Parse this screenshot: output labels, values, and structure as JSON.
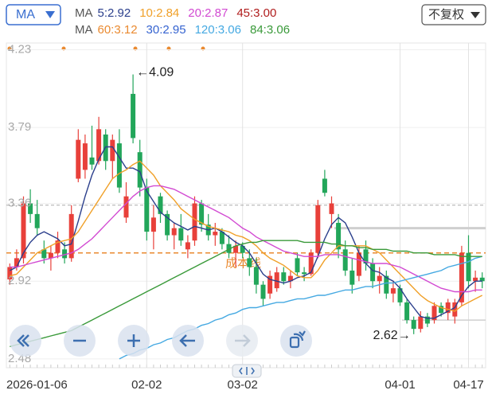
{
  "chart_data": {
    "type": "candlestick",
    "indicator": "MA",
    "adjust_button": "不复权",
    "legend_rows": [
      {
        "prefix": "MA",
        "series": [
          {
            "name": "5:2.92",
            "color": "#2b3f8c",
            "values": [
              2.98,
              3.0,
              3.08,
              3.14,
              3.18,
              3.2,
              3.18,
              3.16,
              3.12,
              3.13,
              3.26,
              3.4,
              3.52,
              3.61,
              3.68,
              3.68,
              3.62,
              3.56,
              3.56,
              3.54,
              3.43,
              3.37,
              3.31,
              3.28,
              3.25,
              3.23,
              3.21,
              3.23,
              3.22,
              3.21,
              3.22,
              3.2,
              3.17,
              3.14,
              3.12,
              3.08,
              3.02,
              2.96,
              2.93,
              2.92,
              2.91,
              2.92,
              2.94,
              2.95,
              2.97,
              3.06,
              3.16,
              3.24,
              3.28,
              3.25,
              3.17,
              3.08,
              3.02,
              2.98,
              2.97,
              2.94,
              2.92,
              2.88,
              2.82,
              2.77,
              2.72,
              2.71,
              2.71,
              2.73,
              2.75,
              2.77,
              2.84,
              2.89,
              2.92,
              2.92
            ]
          },
          {
            "name": "10:2.84",
            "color": "#f0a028",
            "values": [
              2.95,
              2.96,
              3.0,
              3.04,
              3.08,
              3.1,
              3.12,
              3.14,
              3.15,
              3.16,
              3.2,
              3.26,
              3.32,
              3.38,
              3.44,
              3.5,
              3.53,
              3.55,
              3.58,
              3.6,
              3.56,
              3.52,
              3.46,
              3.42,
              3.38,
              3.33,
              3.3,
              3.27,
              3.25,
              3.23,
              3.22,
              3.21,
              3.2,
              3.18,
              3.17,
              3.15,
              3.12,
              3.08,
              3.05,
              3.03,
              3.01,
              2.98,
              2.95,
              2.94,
              2.94,
              2.98,
              3.04,
              3.08,
              3.12,
              3.12,
              3.12,
              3.12,
              3.12,
              3.1,
              3.08,
              3.04,
              3.0,
              2.96,
              2.92,
              2.88,
              2.84,
              2.81,
              2.79,
              2.77,
              2.76,
              2.75,
              2.78,
              2.8,
              2.82,
              2.84
            ]
          },
          {
            "name": "20:2.87",
            "color": "#d24ad2",
            "values": [
              3.0,
              3.0,
              3.01,
              3.02,
              3.03,
              3.04,
              3.05,
              3.06,
              3.07,
              3.08,
              3.1,
              3.13,
              3.16,
              3.2,
              3.24,
              3.28,
              3.32,
              3.36,
              3.4,
              3.43,
              3.45,
              3.46,
              3.46,
              3.45,
              3.44,
              3.42,
              3.4,
              3.38,
              3.36,
              3.34,
              3.32,
              3.3,
              3.28,
              3.25,
              3.22,
              3.2,
              3.17,
              3.15,
              3.13,
              3.11,
              3.09,
              3.08,
              3.07,
              3.06,
              3.06,
              3.06,
              3.07,
              3.07,
              3.07,
              3.06,
              3.05,
              3.04,
              3.03,
              3.02,
              3.02,
              3.02,
              3.01,
              3.0,
              2.98,
              2.96,
              2.94,
              2.92,
              2.9,
              2.88,
              2.87,
              2.86,
              2.86,
              2.86,
              2.87,
              2.87
            ]
          },
          {
            "name": "45:3.00",
            "color": "#b01c1c"
          }
        ]
      },
      {
        "prefix": "MA",
        "series": [
          {
            "name": "60:3.12",
            "color": "#ea8a30"
          },
          {
            "name": "30:2.95",
            "color": "#3563d0"
          },
          {
            "name": "120:3.06",
            "color": "#45a9e2",
            "values": [
              null,
              null,
              null,
              null,
              null,
              null,
              null,
              null,
              null,
              null,
              null,
              null,
              null,
              null,
              null,
              null,
              2.48,
              2.5,
              2.51,
              2.53,
              2.54,
              2.56,
              2.57,
              2.59,
              2.6,
              2.62,
              2.64,
              2.65,
              2.67,
              2.68,
              2.7,
              2.71,
              2.73,
              2.74,
              2.76,
              2.77,
              2.77,
              2.78,
              2.79,
              2.8,
              2.8,
              2.81,
              2.82,
              2.82,
              2.83,
              2.84,
              2.84,
              2.85,
              2.86,
              2.87,
              2.87,
              2.88,
              2.89,
              2.89,
              2.9,
              2.91,
              2.91,
              2.92,
              2.93,
              2.94,
              2.95,
              2.96,
              2.97,
              2.98,
              3.0,
              3.01,
              3.02,
              3.03,
              3.05,
              3.06
            ]
          },
          {
            "name": "84:3.06",
            "color": "#3a9a3a",
            "values": [
              2.55,
              2.56,
              2.57,
              2.58,
              2.59,
              2.6,
              2.61,
              2.62,
              2.63,
              2.64,
              2.66,
              2.68,
              2.7,
              2.72,
              2.74,
              2.76,
              2.78,
              2.8,
              2.82,
              2.84,
              2.86,
              2.88,
              2.9,
              2.92,
              2.94,
              2.96,
              2.98,
              3.0,
              3.02,
              3.04,
              3.06,
              3.08,
              3.1,
              3.12,
              3.13,
              3.14,
              3.14,
              3.15,
              3.15,
              3.15,
              3.15,
              3.15,
              3.15,
              3.14,
              3.14,
              3.14,
              3.14,
              3.13,
              3.13,
              3.12,
              3.12,
              3.11,
              3.11,
              3.1,
              3.1,
              3.1,
              3.09,
              3.09,
              3.09,
              3.08,
              3.08,
              3.08,
              3.07,
              3.07,
              3.07,
              3.07,
              3.06,
              3.06,
              3.06,
              3.06
            ]
          }
        ]
      }
    ],
    "categories": [
      "2026-01-06",
      null,
      null,
      null,
      null,
      null,
      null,
      null,
      null,
      null,
      null,
      null,
      null,
      null,
      null,
      null,
      null,
      null,
      null,
      null,
      "02-02",
      null,
      null,
      null,
      null,
      null,
      null,
      null,
      null,
      null,
      null,
      null,
      null,
      null,
      "03-02",
      null,
      null,
      null,
      null,
      null,
      null,
      null,
      null,
      null,
      null,
      null,
      null,
      null,
      null,
      null,
      null,
      null,
      null,
      null,
      null,
      null,
      null,
      "04-01",
      null,
      null,
      null,
      null,
      null,
      null,
      null,
      null,
      null,
      "04-17",
      null,
      null
    ],
    "candles": [
      [
        2.93,
        3.02,
        2.9,
        3.0
      ],
      [
        3.0,
        3.1,
        2.98,
        3.05
      ],
      [
        3.05,
        3.4,
        3.02,
        3.36
      ],
      [
        3.36,
        3.44,
        3.25,
        3.3
      ],
      [
        3.3,
        3.38,
        3.18,
        3.22
      ],
      [
        3.1,
        3.15,
        3.02,
        3.05
      ],
      [
        3.05,
        3.12,
        2.98,
        3.08
      ],
      [
        3.08,
        3.2,
        3.05,
        3.15
      ],
      [
        3.1,
        3.14,
        3.02,
        3.05
      ],
      [
        3.05,
        3.35,
        3.03,
        3.3
      ],
      [
        3.5,
        3.78,
        3.48,
        3.72
      ],
      [
        3.55,
        3.75,
        3.5,
        3.7
      ],
      [
        3.62,
        3.8,
        3.55,
        3.58
      ],
      [
        3.6,
        3.85,
        3.58,
        3.78
      ],
      [
        3.75,
        3.78,
        3.55,
        3.6
      ],
      [
        3.6,
        3.75,
        3.5,
        3.72
      ],
      [
        3.7,
        3.78,
        3.42,
        3.45
      ],
      [
        3.28,
        3.48,
        3.25,
        3.4
      ],
      [
        3.98,
        4.09,
        3.7,
        3.73
      ],
      [
        3.65,
        3.72,
        3.4,
        3.45
      ],
      [
        3.45,
        3.5,
        3.15,
        3.2
      ],
      [
        3.2,
        3.35,
        3.1,
        3.28
      ],
      [
        3.4,
        3.42,
        3.25,
        3.3
      ],
      [
        3.3,
        3.32,
        3.15,
        3.18
      ],
      [
        3.18,
        3.25,
        3.1,
        3.22
      ],
      [
        3.22,
        3.3,
        3.12,
        3.15
      ],
      [
        3.1,
        3.18,
        3.05,
        3.14
      ],
      [
        3.15,
        3.4,
        3.12,
        3.36
      ],
      [
        3.36,
        3.38,
        3.2,
        3.24
      ],
      [
        3.24,
        3.3,
        3.15,
        3.18
      ],
      [
        3.18,
        3.25,
        3.12,
        3.2
      ],
      [
        3.2,
        3.22,
        3.1,
        3.13
      ],
      [
        3.13,
        3.18,
        3.05,
        3.08
      ],
      [
        3.08,
        3.15,
        3.0,
        3.12
      ],
      [
        3.12,
        3.14,
        3.05,
        3.08
      ],
      [
        3.05,
        3.1,
        2.95,
        3.0
      ],
      [
        3.0,
        3.05,
        2.85,
        2.9
      ],
      [
        2.9,
        2.92,
        2.78,
        2.82
      ],
      [
        2.85,
        2.98,
        2.82,
        2.95
      ],
      [
        2.88,
        3.0,
        2.86,
        2.97
      ],
      [
        2.97,
        3.0,
        2.9,
        2.92
      ],
      [
        2.92,
        2.98,
        2.88,
        2.95
      ],
      [
        3.05,
        3.08,
        2.95,
        2.97
      ],
      [
        2.97,
        3.0,
        2.92,
        2.96
      ],
      [
        2.96,
        3.1,
        2.95,
        3.08
      ],
      [
        3.08,
        3.38,
        3.05,
        3.35
      ],
      [
        3.5,
        3.55,
        3.4,
        3.42
      ],
      [
        3.3,
        3.4,
        3.22,
        3.36
      ],
      [
        3.25,
        3.3,
        3.05,
        3.1
      ],
      [
        3.1,
        3.15,
        2.95,
        2.98
      ],
      [
        2.98,
        3.05,
        2.85,
        2.9
      ],
      [
        2.95,
        3.12,
        2.92,
        3.08
      ],
      [
        3.1,
        3.15,
        2.98,
        3.02
      ],
      [
        3.02,
        3.05,
        2.88,
        2.92
      ],
      [
        2.92,
        3.0,
        2.85,
        2.95
      ],
      [
        2.95,
        2.98,
        2.82,
        2.85
      ],
      [
        2.85,
        2.92,
        2.8,
        2.88
      ],
      [
        2.88,
        2.9,
        2.78,
        2.8
      ],
      [
        2.8,
        2.82,
        2.68,
        2.7
      ],
      [
        2.7,
        2.72,
        2.62,
        2.65
      ],
      [
        2.65,
        2.75,
        2.63,
        2.72
      ],
      [
        2.72,
        2.74,
        2.66,
        2.68
      ],
      [
        2.7,
        2.8,
        2.68,
        2.78
      ],
      [
        2.78,
        2.8,
        2.72,
        2.74
      ],
      [
        2.74,
        2.82,
        2.7,
        2.8
      ],
      [
        2.72,
        2.82,
        2.68,
        2.8
      ],
      [
        2.8,
        3.12,
        2.78,
        3.08
      ],
      [
        3.08,
        3.18,
        2.88,
        2.92
      ],
      [
        2.92,
        2.98,
        2.86,
        2.94
      ],
      [
        2.94,
        2.97,
        2.88,
        2.92
      ]
    ],
    "up_color": "#e8403a",
    "down_color": "#22a65a",
    "high_label": "←4.09",
    "low_label": "2.62→",
    "cost_line": {
      "label": "成本线",
      "value": 3.08,
      "color": "#ea8a30"
    },
    "ref_line": 3.35,
    "range_lines": [
      3.22,
      2.7
    ],
    "ylim": [
      2.43,
      4.25
    ],
    "yticks": [
      2.48,
      2.92,
      3.36,
      3.79,
      4.23
    ],
    "grid": true
  }
}
